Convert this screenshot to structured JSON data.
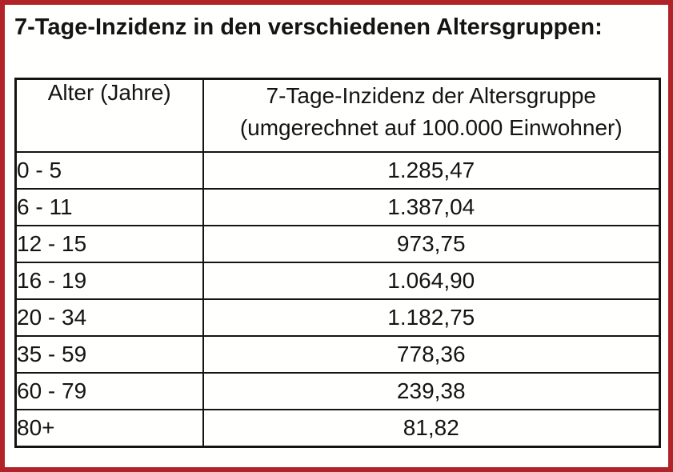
{
  "page": {
    "title": "7-Tage-Inzidenz in den verschiedenen Altersgruppen:",
    "border_color": "#B02328",
    "table_line_color": "#141414",
    "background_color": "#FFFFFD"
  },
  "table": {
    "header": {
      "age_label": "Alter (Jahre)",
      "incidence_label_line1": "7-Tage-Inzidenz der Altersgruppe",
      "incidence_label_line2": "(umgerechnet auf 100.000 Einwohner)"
    },
    "rows": [
      {
        "age": "0 - 5",
        "incidence": "1.285,47"
      },
      {
        "age": "6 - 11",
        "incidence": "1.387,04"
      },
      {
        "age": "12 - 15",
        "incidence": "973,75"
      },
      {
        "age": "16 - 19",
        "incidence": "1.064,90"
      },
      {
        "age": "20 - 34",
        "incidence": "1.182,75"
      },
      {
        "age": "35 - 59",
        "incidence": "778,36"
      },
      {
        "age": "60 - 79",
        "incidence": "239,38"
      },
      {
        "age": "80+",
        "incidence": "81,82"
      }
    ]
  },
  "chart_data": {
    "type": "table",
    "title": "7-Tage-Inzidenz in den verschiedenen Altersgruppen",
    "categories": [
      "0 - 5",
      "6 - 11",
      "12 - 15",
      "16 - 19",
      "20 - 34",
      "35 - 59",
      "60 - 79",
      "80+"
    ],
    "values": [
      1285.47,
      1387.04,
      973.75,
      1064.9,
      1182.75,
      778.36,
      239.38,
      81.82
    ],
    "value_label": "7-Tage-Inzidenz der Altersgruppe (umgerechnet auf 100.000 Einwohner)"
  }
}
